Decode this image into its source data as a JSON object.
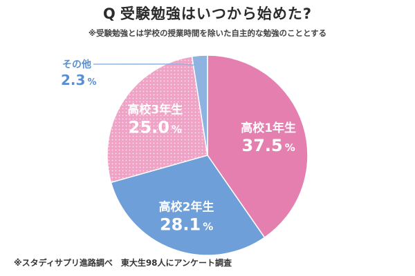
{
  "header": {
    "q_mark": "Q",
    "title": "受験勉強はいつから始めた?",
    "subtitle": "※受験勉強とは学校の授業時間を除いた自主的な勉強のこととする"
  },
  "footer": {
    "source": "※スタディサプリ進路調べ　東大生98人にアンケート調査"
  },
  "chart_data": {
    "type": "pie",
    "title": "受験勉強はいつから始めた?",
    "slices": [
      {
        "label": "高校1年生",
        "value": 37.5,
        "display": "37.5",
        "color": "#e47fb0"
      },
      {
        "label": "高校2年生",
        "value": 28.1,
        "display": "28.1",
        "color": "#6f9fd8"
      },
      {
        "label": "高校3年生",
        "value": 25.0,
        "display": "25.0",
        "color": "#efa3c6",
        "pattern": "dots"
      },
      {
        "label": "その他",
        "value": 2.3,
        "display": "2.3",
        "color": "#8eb3e0"
      }
    ],
    "unit": "%"
  }
}
